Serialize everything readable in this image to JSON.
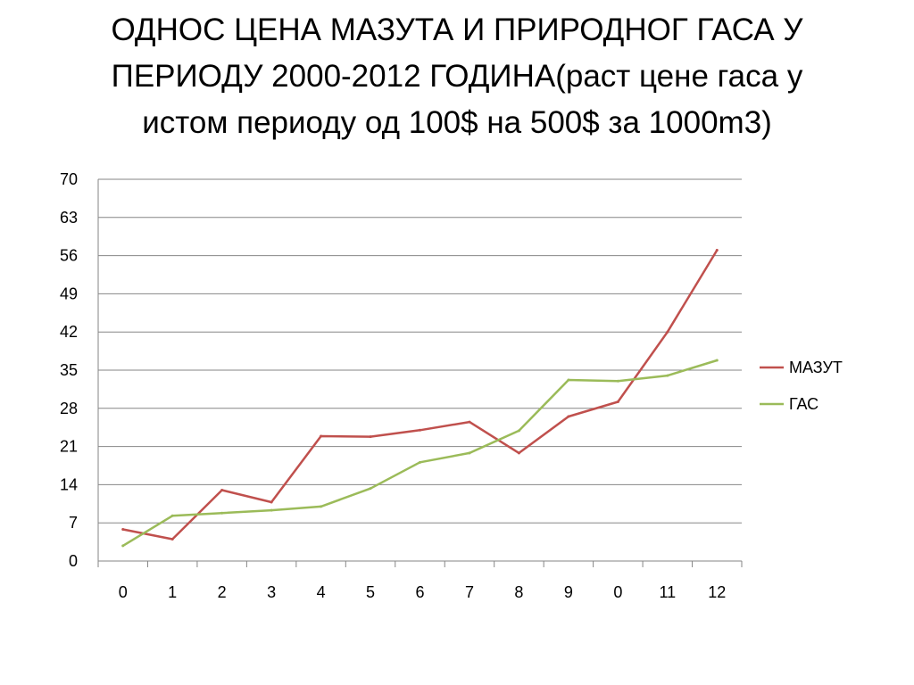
{
  "slide": {
    "title_lines": [
      "ОДНОС ЦЕНА МАЗУТА И ПРИРОДНОГ ГАСА У",
      "ПЕРИОДУ 2000-2012 ГОДИНА(раст цене гаса у",
      "истом периоду од 100$ на 500$ за 1000m3)"
    ]
  },
  "chart_data": {
    "type": "line",
    "categories": [
      "0",
      "1",
      "2",
      "3",
      "4",
      "5",
      "6",
      "7",
      "8",
      "9",
      "0",
      "11",
      "12"
    ],
    "ylim": [
      0,
      70
    ],
    "yticks": [
      0,
      7,
      14,
      21,
      28,
      35,
      42,
      49,
      56,
      63,
      70
    ],
    "grid": true,
    "legend_position": "right",
    "series": [
      {
        "name": "МАЗУТ",
        "color": "#C0504D",
        "values": [
          5.8,
          4.0,
          13.0,
          10.8,
          22.9,
          22.8,
          24.0,
          25.5,
          19.8,
          26.5,
          29.2,
          42.0,
          57.0
        ]
      },
      {
        "name": "ГАС",
        "color": "#9BBB59",
        "values": [
          2.8,
          8.3,
          8.8,
          9.3,
          10.0,
          13.3,
          18.1,
          19.8,
          23.9,
          33.2,
          33.0,
          34.0,
          36.8
        ]
      }
    ]
  }
}
